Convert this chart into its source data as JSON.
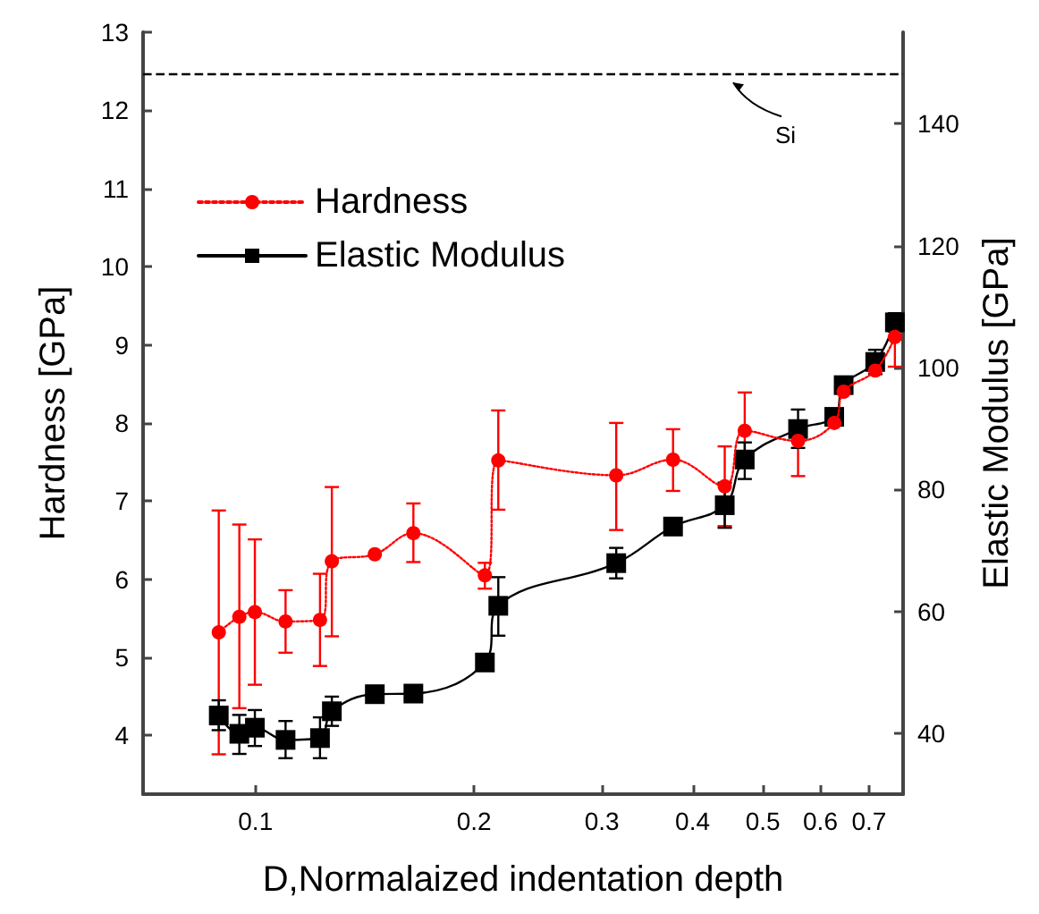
{
  "chart_data": {
    "type": "line",
    "xlabel": "D,Normalaized indentation depth",
    "ylabel": "Hardness [GPa]",
    "y2label": "Elastic Modulus [GPa]",
    "x": [
      0.089,
      0.095,
      0.0998,
      0.11,
      0.1227,
      0.1274,
      0.146,
      0.165,
      0.207,
      0.216,
      0.314,
      0.376,
      0.443,
      0.472,
      0.559,
      0.627,
      0.646,
      0.714,
      0.76
    ],
    "series": [
      {
        "name": "Hardness",
        "color": "#ff0000",
        "marker": "circle",
        "line_style": "dotted",
        "values": [
          5.32,
          5.52,
          5.58,
          5.46,
          5.48,
          6.23,
          6.32,
          6.59,
          6.05,
          7.52,
          7.33,
          7.53,
          7.19,
          7.9,
          7.77,
          8.0,
          8.4,
          8.67,
          9.1
        ],
        "errors": [
          [
            3.76,
            6.88
          ],
          [
            4.35,
            6.7
          ],
          [
            4.65,
            6.51
          ],
          [
            5.06,
            5.86
          ],
          [
            4.89,
            6.07
          ],
          [
            5.27,
            7.18
          ],
          null,
          [
            6.22,
            6.97
          ],
          [
            5.88,
            6.21
          ],
          [
            6.89,
            8.16
          ],
          [
            6.63,
            8.0
          ],
          [
            7.13,
            7.92
          ],
          [
            6.68,
            7.7
          ],
          [
            7.44,
            8.39
          ],
          [
            7.32,
            7.77
          ],
          null,
          null,
          null,
          [
            8.72,
            9.1
          ]
        ]
      },
      {
        "name": "Elastic Modulus",
        "color": "#000000",
        "marker": "square",
        "line_style": "solid",
        "axis": "y2",
        "values": [
          42.9,
          39.9,
          40.9,
          38.9,
          39.2,
          43.6,
          46.4,
          46.5,
          51.6,
          60.9,
          67.9,
          73.9,
          77.4,
          84.9,
          89.9,
          91.9,
          97.1,
          100.9,
          107.4
        ],
        "errors": [
          [
            40.5,
            45.4
          ],
          [
            36.6,
            43.0
          ],
          [
            37.9,
            43.8
          ],
          [
            35.9,
            42.0
          ],
          [
            35.9,
            42.6
          ],
          [
            41.2,
            46.0
          ],
          null,
          [
            45.5,
            47.5
          ],
          null,
          [
            56.0,
            65.6
          ],
          [
            65.4,
            70.4
          ],
          null,
          [
            73.7,
            81.1
          ],
          [
            81.7,
            87.7
          ],
          [
            86.8,
            93.1
          ],
          [
            90.9,
            92.9
          ],
          null,
          [
            98.9,
            102.9
          ],
          [
            105.9,
            108.9
          ]
        ]
      }
    ],
    "xlim": [
      0.07,
      0.78
    ],
    "xticks": [
      0.1,
      0.2,
      0.3,
      0.4,
      0.5,
      0.6,
      0.7
    ],
    "log": "x",
    "ylim": [
      3.25,
      13
    ],
    "yticks": [
      4,
      5,
      6,
      7,
      8,
      9,
      10,
      11,
      12,
      13
    ],
    "y2lim": [
      30,
      155
    ],
    "y2ticks": [
      40,
      60,
      80,
      100,
      120,
      140
    ],
    "ref_lines": [
      {
        "axis": "y",
        "value": 12.47,
        "label": "Si",
        "color": "#000000",
        "line_style": "dashed"
      }
    ],
    "legend": "top left",
    "grid": false
  }
}
